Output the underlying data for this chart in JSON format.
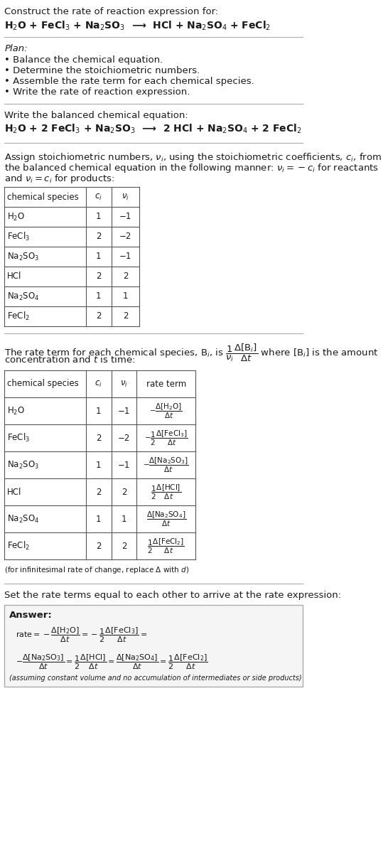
{
  "bg_color": "#ffffff",
  "text_color": "#1a1a1a",
  "title_line1": "Construct the rate of reaction expression for:",
  "reaction_unbalanced": "H$_2$O + FeCl$_3$ + Na$_2$SO$_3$  ⟶  HCl + Na$_2$SO$_4$ + FeCl$_2$",
  "plan_label": "Plan:",
  "plan_items": [
    "• Balance the chemical equation.",
    "• Determine the stoichiometric numbers.",
    "• Assemble the rate term for each chemical species.",
    "• Write the rate of reaction expression."
  ],
  "balanced_label": "Write the balanced chemical equation:",
  "reaction_balanced": "H$_2$O + 2 FeCl$_3$ + Na$_2$SO$_3$  ⟶  2 HCl + Na$_2$SO$_4$ + 2 FeCl$_2$",
  "stoich_intro": "Assign stoichiometric numbers, $\\nu_i$, using the stoichiometric coefficients, $c_i$, from\nthe balanced chemical equation in the following manner: $\\nu_i = -c_i$ for reactants\nand $\\nu_i = c_i$ for products:",
  "table1_headers": [
    "chemical species",
    "$c_i$",
    "$\\nu_i$"
  ],
  "table1_rows": [
    [
      "H$_2$O",
      "1",
      "−1"
    ],
    [
      "FeCl$_3$",
      "2",
      "−2"
    ],
    [
      "Na$_2$SO$_3$",
      "1",
      "−1"
    ],
    [
      "HCl",
      "2",
      "2"
    ],
    [
      "Na$_2$SO$_4$",
      "1",
      "1"
    ],
    [
      "FeCl$_2$",
      "2",
      "2"
    ]
  ],
  "rate_intro": "The rate term for each chemical species, B$_i$, is $\\dfrac{1}{\\nu_i}\\dfrac{\\Delta[\\mathrm{B}_i]}{\\Delta t}$ where [B$_i$] is the amount\nconcentration and $t$ is time:",
  "table2_headers": [
    "chemical species",
    "$c_i$",
    "$\\nu_i$",
    "rate term"
  ],
  "table2_rows": [
    [
      "H$_2$O",
      "1",
      "−1",
      "$-\\dfrac{\\Delta[\\mathrm{H_2O}]}{\\Delta t}$"
    ],
    [
      "FeCl$_3$",
      "2",
      "−2",
      "$-\\dfrac{1}{2}\\dfrac{\\Delta[\\mathrm{FeCl_3}]}{\\Delta t}$"
    ],
    [
      "Na$_2$SO$_3$",
      "1",
      "−1",
      "$-\\dfrac{\\Delta[\\mathrm{Na_2SO_3}]}{\\Delta t}$"
    ],
    [
      "HCl",
      "2",
      "2",
      "$\\dfrac{1}{2}\\dfrac{\\Delta[\\mathrm{HCl}]}{\\Delta t}$"
    ],
    [
      "Na$_2$SO$_4$",
      "1",
      "1",
      "$\\dfrac{\\Delta[\\mathrm{Na_2SO_4}]}{\\Delta t}$"
    ],
    [
      "FeCl$_2$",
      "2",
      "2",
      "$\\dfrac{1}{2}\\dfrac{\\Delta[\\mathrm{FeCl_2}]}{\\Delta t}$"
    ]
  ],
  "infinitesimal_note": "(for infinitesimal rate of change, replace Δ with $d$)",
  "set_equal_label": "Set the rate terms equal to each other to arrive at the rate expression:",
  "answer_label": "Answer:",
  "answer_box_color": "#f0f0f0",
  "rate_expression_line1": "$\\mathrm{rate} = -\\dfrac{\\Delta[\\mathrm{H_2O}]}{\\Delta t} = -\\dfrac{1}{2}\\dfrac{\\Delta[\\mathrm{FeCl_3}]}{\\Delta t} =$",
  "rate_expression_line2": "$-\\dfrac{\\Delta[\\mathrm{Na_2SO_3}]}{\\Delta t} = \\dfrac{1}{2}\\dfrac{\\Delta[\\mathrm{HCl}]}{\\Delta t} = \\dfrac{\\Delta[\\mathrm{Na_2SO_4}]}{\\Delta t} = \\dfrac{1}{2}\\dfrac{\\Delta[\\mathrm{FeCl_2}]}{\\Delta t}$",
  "answer_note": "(assuming constant volume and no accumulation of intermediates or side products)"
}
